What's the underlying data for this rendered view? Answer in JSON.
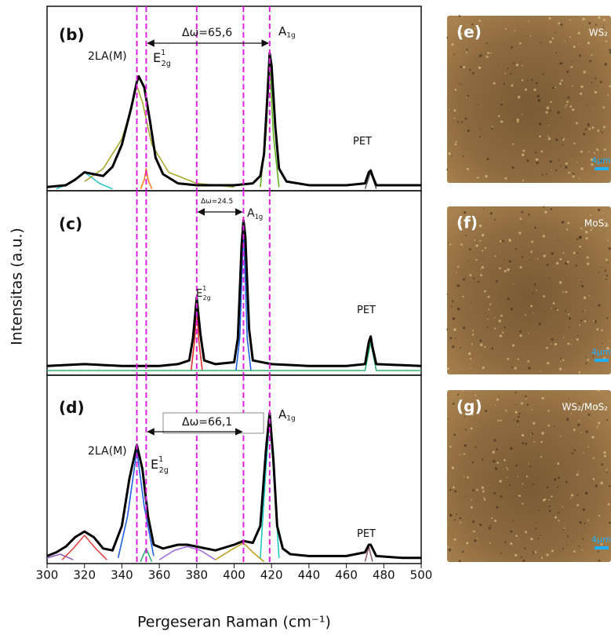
{
  "chart_data": [
    {
      "type": "line",
      "panel": "(b)",
      "xlim": [
        300,
        500
      ],
      "ylim": [
        0,
        100
      ],
      "vlines": [
        348,
        353,
        380,
        405,
        419
      ],
      "vline_color": "#e020e0",
      "annotations": [
        {
          "text": "(b)"
        },
        {
          "text": "2LA(M)"
        },
        {
          "text": "E",
          "sup": "1",
          "sub": "2g"
        },
        {
          "text": "Δω=65,6"
        },
        {
          "text": "A",
          "sub": "1g"
        },
        {
          "text": "PET"
        }
      ],
      "series": [
        {
          "color": "#30c8c8",
          "x": [
            305,
            312,
            320,
            328,
            335
          ],
          "values": [
            1,
            4,
            10,
            4,
            1
          ]
        },
        {
          "color": "#a8a830",
          "x": [
            320,
            330,
            340,
            345,
            348,
            351,
            356,
            365,
            380,
            400
          ],
          "values": [
            5,
            12,
            28,
            45,
            57,
            48,
            25,
            10,
            4,
            2
          ]
        },
        {
          "color": "#ff8020",
          "x": [
            350,
            352,
            353,
            354,
            356
          ],
          "values": [
            1,
            6,
            12,
            6,
            1
          ]
        },
        {
          "color": "#60b020",
          "x": [
            414,
            417,
            419,
            421,
            424
          ],
          "values": [
            2,
            30,
            71,
            30,
            2
          ]
        },
        {
          "color": "#606060",
          "x": [
            470,
            473,
            476
          ],
          "values": [
            1,
            10,
            1
          ]
        },
        {
          "color": "#000000",
          "x": [
            300,
            310,
            315,
            320,
            325,
            330,
            335,
            340,
            345,
            348,
            349,
            352,
            355,
            358,
            362,
            370,
            380,
            390,
            400,
            410,
            414,
            416,
            418,
            419,
            420,
            422,
            424,
            428,
            440,
            460,
            470,
            472,
            473,
            474,
            476,
            500
          ],
          "values": [
            2,
            3,
            6,
            10,
            9,
            8,
            13,
            25,
            45,
            59,
            62,
            56,
            38,
            18,
            9,
            4,
            3,
            3,
            3,
            4,
            8,
            20,
            55,
            74.5,
            68,
            35,
            12,
            5,
            3,
            3,
            4,
            10,
            11,
            8,
            3,
            3
          ]
        }
      ]
    },
    {
      "type": "line",
      "panel": "(c)",
      "xlim": [
        300,
        500
      ],
      "ylim": [
        0,
        100
      ],
      "ylabel": "Intensitas (a.u.)",
      "vlines": [
        348,
        353,
        380,
        405,
        419
      ],
      "vline_color": "#e020e0",
      "annotations": [
        {
          "text": "(c)"
        },
        {
          "text": "Δω=24.5"
        },
        {
          "text": "A",
          "sub": "1g"
        },
        {
          "text": "E",
          "sup": "1",
          "sub": "2g"
        },
        {
          "text": "PET"
        }
      ],
      "series": [
        {
          "color": "#e03030",
          "x": [
            377,
            379,
            380,
            381,
            383
          ],
          "values": [
            2.5,
            20,
            38,
            20,
            2.5
          ]
        },
        {
          "color": "#2060e0",
          "x": [
            401,
            403,
            405,
            407,
            409
          ],
          "values": [
            2.5,
            20,
            80,
            20,
            2.5
          ]
        },
        {
          "color": "#30b070",
          "x": [
            300,
            470,
            473,
            476,
            500
          ],
          "values": [
            2.5,
            2.5,
            18,
            2.5,
            2.5
          ]
        },
        {
          "color": "#000000",
          "x": [
            300,
            320,
            340,
            360,
            370,
            376,
            378,
            380,
            382,
            384,
            390,
            400,
            402,
            404,
            405,
            406,
            408,
            410,
            420,
            440,
            460,
            470,
            472,
            473,
            474,
            476,
            500
          ],
          "values": [
            5,
            6,
            5,
            5,
            6,
            8,
            20,
            42,
            22,
            8,
            6,
            7,
            20,
            70,
            84,
            75,
            25,
            8,
            6,
            5,
            5,
            6,
            18,
            21,
            15,
            6,
            5
          ]
        }
      ]
    },
    {
      "type": "line",
      "panel": "(d)",
      "xlim": [
        300,
        500
      ],
      "ylim": [
        0,
        100
      ],
      "xticks": [
        300,
        320,
        340,
        360,
        380,
        400,
        420,
        440,
        460,
        480,
        500
      ],
      "xlabel": "Pergeseran Raman (cm⁻¹)",
      "vlines": [
        348,
        353,
        380,
        405,
        419
      ],
      "vline_color": "#e020e0",
      "annotations": [
        {
          "text": "(d)"
        },
        {
          "text": "2LA(M)"
        },
        {
          "text": "E",
          "sup": "1",
          "sub": "2g"
        },
        {
          "text": "Δω=66,1"
        },
        {
          "text": "A",
          "sub": "1g"
        },
        {
          "text": "PET"
        }
      ],
      "series": [
        {
          "color": "#9060c0",
          "x": [
            300,
            307,
            314
          ],
          "values": [
            3,
            5,
            2
          ]
        },
        {
          "color": "#e04848",
          "x": [
            308,
            314,
            320,
            326,
            332
          ],
          "values": [
            2,
            8,
            15,
            8,
            2
          ]
        },
        {
          "color": "#2060e0",
          "x": [
            338,
            343,
            348,
            352,
            357
          ],
          "values": [
            3,
            25,
            60,
            30,
            4
          ]
        },
        {
          "color": "#30b070",
          "x": [
            350,
            353,
            356
          ],
          "values": [
            1,
            8,
            1
          ]
        },
        {
          "color": "#a070e0",
          "x": [
            360,
            368,
            375,
            382,
            390
          ],
          "values": [
            2,
            7,
            9,
            7,
            2
          ]
        },
        {
          "color": "#c0a020",
          "x": [
            390,
            398,
            405,
            410,
            416
          ],
          "values": [
            2,
            7,
            11,
            6,
            1
          ]
        },
        {
          "color": "#20c8c0",
          "x": [
            414,
            417,
            419,
            421,
            424
          ],
          "values": [
            3,
            50,
            78,
            50,
            3
          ]
        },
        {
          "color": "#906070",
          "x": [
            470,
            472,
            474
          ],
          "values": [
            1,
            9,
            1
          ]
        },
        {
          "color": "#000000",
          "x": [
            300,
            305,
            310,
            315,
            320,
            325,
            330,
            335,
            340,
            344,
            348,
            351,
            354,
            357,
            362,
            370,
            375,
            380,
            390,
            400,
            405,
            410,
            414,
            417,
            419,
            421,
            423,
            426,
            430,
            440,
            460,
            470,
            472,
            473,
            474,
            476,
            490,
            500
          ],
          "values": [
            4,
            6,
            9,
            14,
            17,
            14,
            8,
            7,
            20,
            45,
            63,
            50,
            25,
            10,
            8,
            10,
            10,
            9,
            7,
            10,
            12,
            11,
            20,
            60,
            80,
            55,
            20,
            8,
            5,
            4,
            4,
            6,
            10,
            10,
            8,
            4,
            3,
            3
          ]
        }
      ]
    }
  ],
  "images": [
    {
      "label": "(e)",
      "material": "WS₂",
      "scale": "4μm"
    },
    {
      "label": "(f)",
      "material": "MoS₂",
      "scale": "4μm"
    },
    {
      "label": "(g)",
      "material": "WS₂/MoS₂",
      "scale": "4μm"
    }
  ]
}
